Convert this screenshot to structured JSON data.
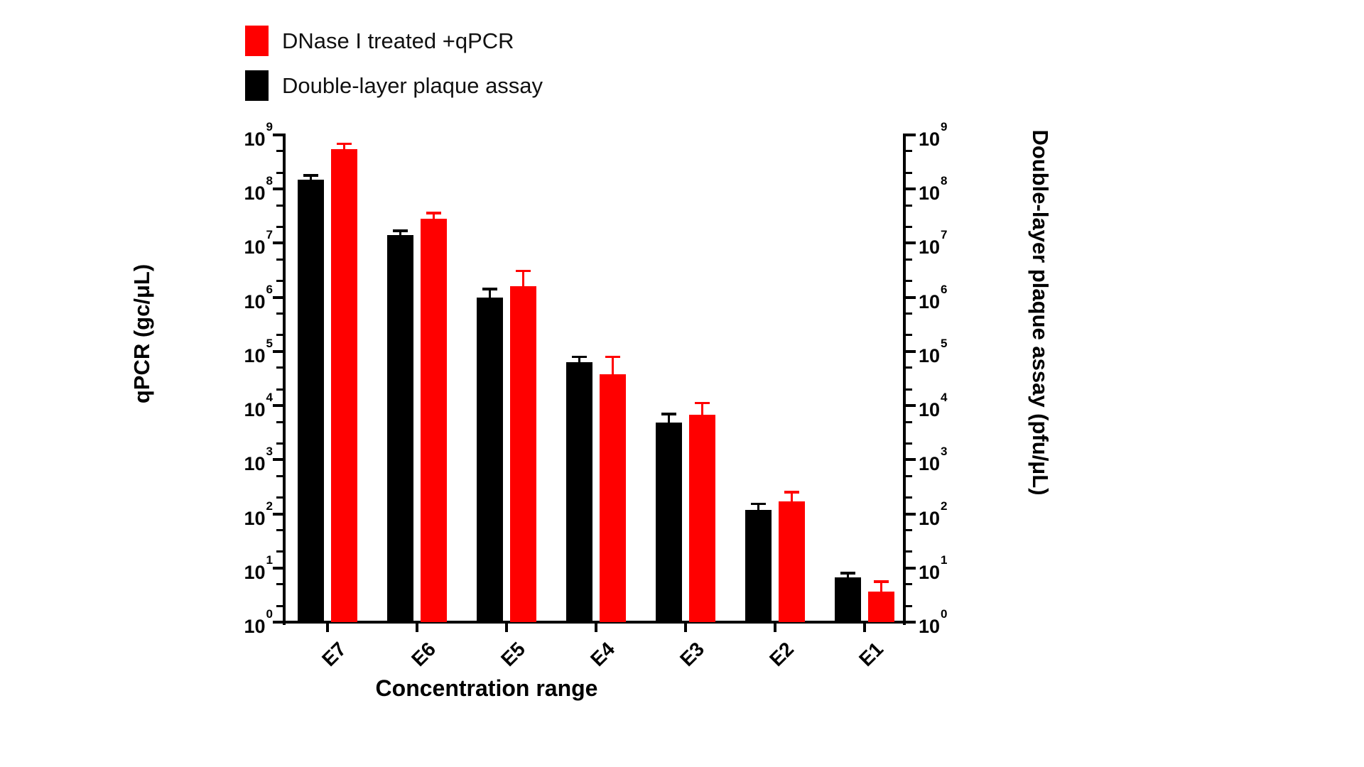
{
  "chart_data": {
    "type": "bar",
    "scale": "log",
    "title": "",
    "xlabel": "Concentration range",
    "categories": [
      "E7",
      "E6",
      "E5",
      "E4",
      "E3",
      "E2",
      "E1"
    ],
    "series": [
      {
        "name": "Double-layer plaque assay",
        "color": "#000000",
        "values": [
          150000000.0,
          14000000.0,
          1000000.0,
          63000.0,
          4800.0,
          120.0,
          6.8
        ],
        "error_top": [
          170000000.0,
          16000000.0,
          1350000.0,
          75000.0,
          6600.0,
          145.0,
          7.6
        ]
      },
      {
        "name": "DNase I treated +qPCR",
        "color": "#ff0000",
        "values": [
          550000000.0,
          28000000.0,
          1600000.0,
          38000.0,
          6700.0,
          170.0,
          3.7
        ],
        "error_top": [
          650000000.0,
          34000000.0,
          2900000.0,
          75000.0,
          10500.0,
          240.0,
          5.3
        ]
      }
    ],
    "legend": [
      {
        "label": "DNase I treated +qPCR",
        "color": "#ff0000"
      },
      {
        "label": "Double-layer plaque assay",
        "color": "#000000"
      }
    ],
    "left_axis": {
      "label": "qPCR (gc/μL)",
      "min_exp": 0,
      "max_exp": 9
    },
    "right_axis": {
      "label": "Double-layer plaque assay (pfu/μL)",
      "min_exp": 0,
      "max_exp": 9
    },
    "tick_base": "10",
    "tick_exponents": [
      9,
      8,
      7,
      6,
      5,
      4,
      3,
      2,
      1,
      0
    ],
    "minor_tick_values": [
      2,
      5
    ],
    "axis_color": "#000000",
    "background_color": "#ffffff"
  }
}
